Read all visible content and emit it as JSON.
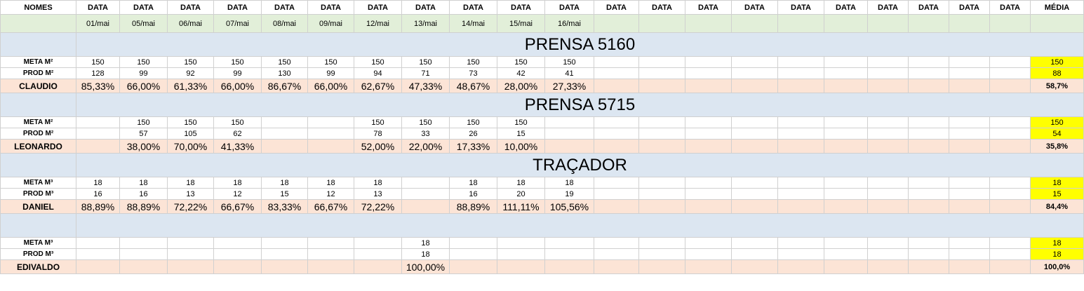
{
  "header": {
    "name_label": "NOMES",
    "date_label": "DATA",
    "avg_label": "MÉDIA",
    "dates": [
      "01/mai",
      "05/mai",
      "06/mai",
      "07/mai",
      "08/mai",
      "09/mai",
      "12/mai",
      "13/mai",
      "14/mai",
      "15/mai",
      "16/mai",
      "",
      "",
      "",
      "",
      "",
      "",
      "",
      "",
      "",
      ""
    ]
  },
  "sections": [
    {
      "title": "PRENSA 5160",
      "meta_label": "META M²",
      "prod_label": "PROD M²",
      "worker": "CLAUDIO",
      "meta": [
        "150",
        "150",
        "150",
        "150",
        "150",
        "150",
        "150",
        "150",
        "150",
        "150",
        "150",
        "",
        "",
        "",
        "",
        "",
        "",
        "",
        "",
        "",
        ""
      ],
      "prod": [
        "128",
        "99",
        "92",
        "99",
        "130",
        "99",
        "94",
        "71",
        "73",
        "42",
        "41",
        "",
        "",
        "",
        "",
        "",
        "",
        "",
        "",
        "",
        ""
      ],
      "pct": [
        "85,33%",
        "66,00%",
        "61,33%",
        "66,00%",
        "86,67%",
        "66,00%",
        "62,67%",
        "47,33%",
        "48,67%",
        "28,00%",
        "27,33%",
        "",
        "",
        "",
        "",
        "",
        "",
        "",
        "",
        "",
        ""
      ],
      "avg_meta": "150",
      "avg_prod": "88",
      "avg_pct": "58,7%"
    },
    {
      "title": "PRENSA 5715",
      "meta_label": "META M²",
      "prod_label": "PROD M²",
      "worker": "LEONARDO",
      "meta": [
        "",
        "150",
        "150",
        "150",
        "",
        "",
        "150",
        "150",
        "150",
        "150",
        "",
        "",
        "",
        "",
        "",
        "",
        "",
        "",
        "",
        "",
        ""
      ],
      "prod": [
        "",
        "57",
        "105",
        "62",
        "",
        "",
        "78",
        "33",
        "26",
        "15",
        "",
        "",
        "",
        "",
        "",
        "",
        "",
        "",
        "",
        "",
        ""
      ],
      "pct": [
        "",
        "38,00%",
        "70,00%",
        "41,33%",
        "",
        "",
        "52,00%",
        "22,00%",
        "17,33%",
        "10,00%",
        "",
        "",
        "",
        "",
        "",
        "",
        "",
        "",
        "",
        "",
        ""
      ],
      "avg_meta": "150",
      "avg_prod": "54",
      "avg_pct": "35,8%"
    },
    {
      "title": "TRAÇADOR",
      "meta_label": "META M³",
      "prod_label": "PROD M³",
      "worker": "DANIEL",
      "meta": [
        "18",
        "18",
        "18",
        "18",
        "18",
        "18",
        "18",
        "",
        "18",
        "18",
        "18",
        "",
        "",
        "",
        "",
        "",
        "",
        "",
        "",
        "",
        ""
      ],
      "prod": [
        "16",
        "16",
        "13",
        "12",
        "15",
        "12",
        "13",
        "",
        "16",
        "20",
        "19",
        "",
        "",
        "",
        "",
        "",
        "",
        "",
        "",
        "",
        ""
      ],
      "pct": [
        "88,89%",
        "88,89%",
        "72,22%",
        "66,67%",
        "83,33%",
        "66,67%",
        "72,22%",
        "",
        "88,89%",
        "111,11%",
        "105,56%",
        "",
        "",
        "",
        "",
        "",
        "",
        "",
        "",
        "",
        ""
      ],
      "avg_meta": "18",
      "avg_prod": "15",
      "avg_pct": "84,4%"
    },
    {
      "title": "",
      "meta_label": "META M³",
      "prod_label": "PROD M³",
      "worker": "EDIVALDO",
      "meta": [
        "",
        "",
        "",
        "",
        "",
        "",
        "",
        "18",
        "",
        "",
        "",
        "",
        "",
        "",
        "",
        "",
        "",
        "",
        "",
        "",
        ""
      ],
      "prod": [
        "",
        "",
        "",
        "",
        "",
        "",
        "",
        "18",
        "",
        "",
        "",
        "",
        "",
        "",
        "",
        "",
        "",
        "",
        "",
        "",
        ""
      ],
      "pct": [
        "",
        "",
        "",
        "",
        "",
        "",
        "",
        "100,00%",
        "",
        "",
        "",
        "",
        "",
        "",
        "",
        "",
        "",
        "",
        "",
        "",
        ""
      ],
      "avg_meta": "18",
      "avg_prod": "18",
      "avg_pct": "100,0%"
    }
  ],
  "colors": {
    "date_row": "#e2efd9",
    "section_title": "#dce6f1",
    "pct_row": "#fce4d6",
    "avg_highlight": "#ffff00"
  }
}
